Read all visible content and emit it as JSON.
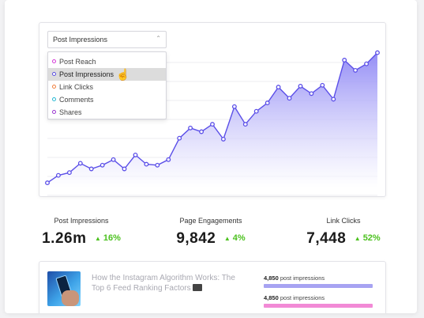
{
  "dropdown": {
    "selected": "Post Impressions",
    "options": [
      {
        "label": "Post Reach",
        "color": "#d63ad8"
      },
      {
        "label": "Post Impressions",
        "color": "#5a4fe0",
        "active": true
      },
      {
        "label": "Link Clicks",
        "color": "#f07f3c"
      },
      {
        "label": "Comments",
        "color": "#27b9d4"
      },
      {
        "label": "Shares",
        "color": "#9b36d1"
      }
    ]
  },
  "chart_data": {
    "type": "area",
    "series": [
      {
        "values": [
          5,
          13,
          16,
          26,
          20,
          24,
          30,
          20,
          35,
          25,
          24,
          30,
          53,
          64,
          60,
          68,
          52,
          87,
          68,
          82,
          91,
          108,
          96,
          109,
          101,
          110,
          95,
          137,
          126,
          133,
          145
        ]
      }
    ],
    "color": "#5b4fe8",
    "fill": "#8f88f5"
  },
  "stats": [
    {
      "label": "Post Impressions",
      "value": "1.26m",
      "delta": "16%"
    },
    {
      "label": "Page Engagements",
      "value": "9,842",
      "delta": "4%"
    },
    {
      "label": "Link Clicks",
      "value": "7,448",
      "delta": "52%"
    }
  ],
  "post": {
    "title": "How the Instagram Algorithm Works: The Top 6 Feed Ranking Factors",
    "metrics": [
      {
        "number": "4,850",
        "text": "post impressions",
        "color": "#a7a3f2"
      },
      {
        "number": "4,850",
        "text": "post impressions",
        "color": "#f28ad6"
      }
    ]
  },
  "icons": {
    "delta": "triangle-up-icon",
    "cursor": "hand-pointer-icon",
    "caret": "caret-icon"
  }
}
